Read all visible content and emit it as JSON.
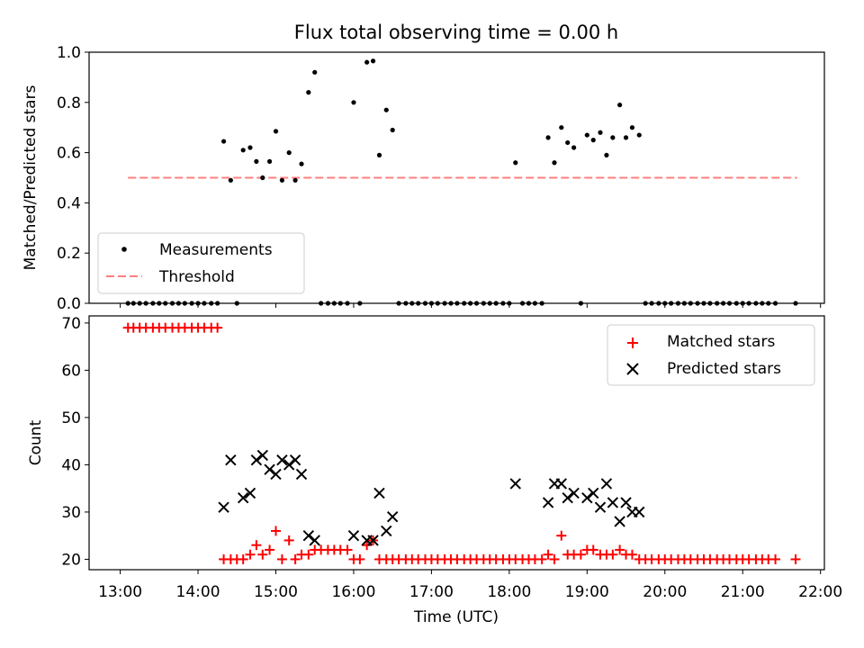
{
  "title": "Flux total observing time = 0.00 h",
  "chart_data": [
    {
      "type": "scatter",
      "title": "Flux total observing time = 0.00 h",
      "xlabel": "",
      "ylabel": "Matched/Predicted stars",
      "xlim": [
        12.6,
        22.05
      ],
      "ylim": [
        0.0,
        1.0
      ],
      "yticks": [
        0.0,
        0.2,
        0.4,
        0.6,
        0.8,
        1.0
      ],
      "ytick_labels": [
        "0.0",
        "0.2",
        "0.4",
        "0.6",
        "0.8",
        "1.0"
      ],
      "xticks": [
        13,
        14,
        15,
        16,
        17,
        18,
        19,
        20,
        21,
        22
      ],
      "legend": {
        "placement": "lower-left",
        "entries": [
          {
            "label": "Measurements",
            "marker": "dot",
            "color": "#000000"
          },
          {
            "label": "Threshold",
            "marker": "dashed-line",
            "color": "#ff7f7f"
          }
        ]
      },
      "threshold": {
        "name": "Threshold",
        "value": 0.5,
        "x_start": 13.1,
        "x_end": 21.7,
        "color": "#ff7f7f"
      },
      "series": [
        {
          "name": "Measurements",
          "color": "#000000",
          "points": [
            [
              13.1,
              0
            ],
            [
              13.17,
              0
            ],
            [
              13.25,
              0
            ],
            [
              13.33,
              0
            ],
            [
              13.42,
              0
            ],
            [
              13.5,
              0
            ],
            [
              13.58,
              0
            ],
            [
              13.67,
              0
            ],
            [
              13.75,
              0
            ],
            [
              13.83,
              0
            ],
            [
              13.92,
              0
            ],
            [
              14.0,
              0
            ],
            [
              14.08,
              0
            ],
            [
              14.17,
              0
            ],
            [
              14.25,
              0
            ],
            [
              14.33,
              0.645
            ],
            [
              14.42,
              0.49
            ],
            [
              14.5,
              0
            ],
            [
              14.58,
              0.61
            ],
            [
              14.67,
              0.62
            ],
            [
              14.75,
              0.565
            ],
            [
              14.83,
              0.5
            ],
            [
              14.92,
              0.565
            ],
            [
              15.0,
              0.685
            ],
            [
              15.08,
              0.49
            ],
            [
              15.17,
              0.6
            ],
            [
              15.25,
              0.49
            ],
            [
              15.33,
              0.555
            ],
            [
              15.42,
              0.84
            ],
            [
              15.5,
              0.92
            ],
            [
              15.58,
              0
            ],
            [
              15.67,
              0
            ],
            [
              15.75,
              0
            ],
            [
              15.83,
              0
            ],
            [
              15.92,
              0
            ],
            [
              16.0,
              0.8
            ],
            [
              16.08,
              0
            ],
            [
              16.17,
              0.96
            ],
            [
              16.25,
              0.965
            ],
            [
              16.33,
              0.59
            ],
            [
              16.42,
              0.77
            ],
            [
              16.5,
              0.69
            ],
            [
              16.58,
              0
            ],
            [
              16.67,
              0
            ],
            [
              16.75,
              0
            ],
            [
              16.83,
              0
            ],
            [
              16.92,
              0
            ],
            [
              17.0,
              0
            ],
            [
              17.08,
              0
            ],
            [
              17.17,
              0
            ],
            [
              17.25,
              0
            ],
            [
              17.33,
              0
            ],
            [
              17.42,
              0
            ],
            [
              17.5,
              0
            ],
            [
              17.58,
              0
            ],
            [
              17.67,
              0
            ],
            [
              17.75,
              0
            ],
            [
              17.83,
              0
            ],
            [
              17.92,
              0
            ],
            [
              18.0,
              0
            ],
            [
              18.08,
              0.56
            ],
            [
              18.17,
              0
            ],
            [
              18.25,
              0
            ],
            [
              18.33,
              0
            ],
            [
              18.42,
              0
            ],
            [
              18.5,
              0.66
            ],
            [
              18.58,
              0.56
            ],
            [
              18.67,
              0.7
            ],
            [
              18.75,
              0.64
            ],
            [
              18.83,
              0.62
            ],
            [
              18.92,
              0
            ],
            [
              19.0,
              0.67
            ],
            [
              19.08,
              0.65
            ],
            [
              19.17,
              0.68
            ],
            [
              19.25,
              0.59
            ],
            [
              19.33,
              0.66
            ],
            [
              19.42,
              0.79
            ],
            [
              19.5,
              0.66
            ],
            [
              19.58,
              0.7
            ],
            [
              19.67,
              0.67
            ],
            [
              19.75,
              0
            ],
            [
              19.83,
              0
            ],
            [
              19.92,
              0
            ],
            [
              20.0,
              0
            ],
            [
              20.08,
              0
            ],
            [
              20.17,
              0
            ],
            [
              20.25,
              0
            ],
            [
              20.33,
              0
            ],
            [
              20.42,
              0
            ],
            [
              20.5,
              0
            ],
            [
              20.58,
              0
            ],
            [
              20.67,
              0
            ],
            [
              20.75,
              0
            ],
            [
              20.83,
              0
            ],
            [
              20.92,
              0
            ],
            [
              21.0,
              0
            ],
            [
              21.08,
              0
            ],
            [
              21.17,
              0
            ],
            [
              21.25,
              0
            ],
            [
              21.33,
              0
            ],
            [
              21.42,
              0
            ],
            [
              21.68,
              0
            ]
          ]
        }
      ]
    },
    {
      "type": "scatter",
      "title": "",
      "xlabel": "Time (UTC)",
      "ylabel": "Count",
      "xlim": [
        12.6,
        22.05
      ],
      "ylim": [
        17.8,
        71.5
      ],
      "yticks": [
        20,
        30,
        40,
        50,
        60,
        70
      ],
      "ytick_labels": [
        "20",
        "30",
        "40",
        "50",
        "60",
        "70"
      ],
      "xticks": [
        13,
        14,
        15,
        16,
        17,
        18,
        19,
        20,
        21,
        22
      ],
      "xtick_labels": [
        "13:00",
        "14:00",
        "15:00",
        "16:00",
        "17:00",
        "18:00",
        "19:00",
        "20:00",
        "21:00",
        "22:00"
      ],
      "legend": {
        "placement": "top-right",
        "entries": [
          {
            "label": "Matched stars",
            "marker": "plus",
            "color": "#ff0000"
          },
          {
            "label": "Predicted stars",
            "marker": "x",
            "color": "#000000"
          }
        ]
      },
      "series": [
        {
          "name": "Matched stars",
          "marker": "plus",
          "color": "#ff0000",
          "points": [
            [
              13.1,
              69
            ],
            [
              13.17,
              69
            ],
            [
              13.25,
              69
            ],
            [
              13.33,
              69
            ],
            [
              13.42,
              69
            ],
            [
              13.5,
              69
            ],
            [
              13.58,
              69
            ],
            [
              13.67,
              69
            ],
            [
              13.75,
              69
            ],
            [
              13.83,
              69
            ],
            [
              13.92,
              69
            ],
            [
              14.0,
              69
            ],
            [
              14.08,
              69
            ],
            [
              14.17,
              69
            ],
            [
              14.25,
              69
            ],
            [
              14.33,
              20
            ],
            [
              14.42,
              20
            ],
            [
              14.5,
              20
            ],
            [
              14.58,
              20
            ],
            [
              14.67,
              21
            ],
            [
              14.75,
              23
            ],
            [
              14.83,
              21
            ],
            [
              14.92,
              22
            ],
            [
              15.0,
              26
            ],
            [
              15.08,
              20
            ],
            [
              15.17,
              24
            ],
            [
              15.25,
              20
            ],
            [
              15.33,
              21
            ],
            [
              15.42,
              21
            ],
            [
              15.5,
              22
            ],
            [
              15.58,
              22
            ],
            [
              15.67,
              22
            ],
            [
              15.75,
              22
            ],
            [
              15.83,
              22
            ],
            [
              15.92,
              22
            ],
            [
              16.0,
              20
            ],
            [
              16.08,
              20
            ],
            [
              16.17,
              23
            ],
            [
              16.25,
              24
            ],
            [
              16.33,
              20
            ],
            [
              16.42,
              20
            ],
            [
              16.5,
              20
            ],
            [
              16.58,
              20
            ],
            [
              16.67,
              20
            ],
            [
              16.75,
              20
            ],
            [
              16.83,
              20
            ],
            [
              16.92,
              20
            ],
            [
              17.0,
              20
            ],
            [
              17.08,
              20
            ],
            [
              17.17,
              20
            ],
            [
              17.25,
              20
            ],
            [
              17.33,
              20
            ],
            [
              17.42,
              20
            ],
            [
              17.5,
              20
            ],
            [
              17.58,
              20
            ],
            [
              17.67,
              20
            ],
            [
              17.75,
              20
            ],
            [
              17.83,
              20
            ],
            [
              17.92,
              20
            ],
            [
              18.0,
              20
            ],
            [
              18.08,
              20
            ],
            [
              18.17,
              20
            ],
            [
              18.25,
              20
            ],
            [
              18.33,
              20
            ],
            [
              18.42,
              20
            ],
            [
              18.5,
              21
            ],
            [
              18.58,
              20
            ],
            [
              18.67,
              25
            ],
            [
              18.75,
              21
            ],
            [
              18.83,
              21
            ],
            [
              18.92,
              21
            ],
            [
              19.0,
              22
            ],
            [
              19.08,
              22
            ],
            [
              19.17,
              21
            ],
            [
              19.25,
              21
            ],
            [
              19.33,
              21
            ],
            [
              19.42,
              22
            ],
            [
              19.5,
              21
            ],
            [
              19.58,
              21
            ],
            [
              19.67,
              20
            ],
            [
              19.75,
              20
            ],
            [
              19.83,
              20
            ],
            [
              19.92,
              20
            ],
            [
              20.0,
              20
            ],
            [
              20.08,
              20
            ],
            [
              20.17,
              20
            ],
            [
              20.25,
              20
            ],
            [
              20.33,
              20
            ],
            [
              20.42,
              20
            ],
            [
              20.5,
              20
            ],
            [
              20.58,
              20
            ],
            [
              20.67,
              20
            ],
            [
              20.75,
              20
            ],
            [
              20.83,
              20
            ],
            [
              20.92,
              20
            ],
            [
              21.0,
              20
            ],
            [
              21.08,
              20
            ],
            [
              21.17,
              20
            ],
            [
              21.25,
              20
            ],
            [
              21.33,
              20
            ],
            [
              21.42,
              20
            ],
            [
              21.68,
              20
            ]
          ]
        },
        {
          "name": "Predicted stars",
          "marker": "x",
          "color": "#000000",
          "points": [
            [
              14.33,
              31
            ],
            [
              14.42,
              41
            ],
            [
              14.58,
              33
            ],
            [
              14.67,
              34
            ],
            [
              14.75,
              41
            ],
            [
              14.83,
              42
            ],
            [
              14.92,
              39
            ],
            [
              15.0,
              38
            ],
            [
              15.08,
              41
            ],
            [
              15.17,
              40
            ],
            [
              15.25,
              41
            ],
            [
              15.33,
              38
            ],
            [
              15.42,
              25
            ],
            [
              15.5,
              24
            ],
            [
              16.0,
              25
            ],
            [
              16.17,
              24
            ],
            [
              16.25,
              24
            ],
            [
              16.33,
              34
            ],
            [
              16.42,
              26
            ],
            [
              16.5,
              29
            ],
            [
              18.08,
              36
            ],
            [
              18.5,
              32
            ],
            [
              18.58,
              36
            ],
            [
              18.67,
              36
            ],
            [
              18.75,
              33
            ],
            [
              18.83,
              34
            ],
            [
              19.0,
              33
            ],
            [
              19.08,
              34
            ],
            [
              19.17,
              31
            ],
            [
              19.25,
              36
            ],
            [
              19.33,
              32
            ],
            [
              19.42,
              28
            ],
            [
              19.5,
              32
            ],
            [
              19.58,
              30
            ],
            [
              19.67,
              30
            ]
          ]
        }
      ]
    }
  ]
}
